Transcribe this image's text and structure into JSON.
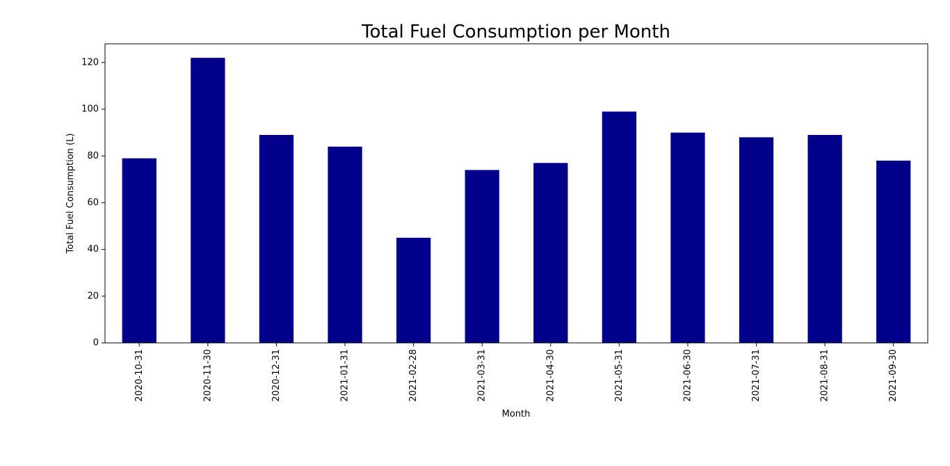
{
  "chart_data": {
    "type": "bar",
    "title": "Total Fuel Consumption per Month",
    "xlabel": "Month",
    "ylabel": "Total Fuel Consumption (L)",
    "categories": [
      "2020-10-31",
      "2020-11-30",
      "2020-12-31",
      "2021-01-31",
      "2021-02-28",
      "2021-03-31",
      "2021-04-30",
      "2021-05-31",
      "2021-06-30",
      "2021-07-31",
      "2021-08-31",
      "2021-09-30"
    ],
    "values": [
      79,
      122,
      89,
      84,
      45,
      74,
      77,
      99,
      90,
      88,
      89,
      78
    ],
    "ylim": [
      0,
      128
    ],
    "yticks": [
      0,
      20,
      40,
      60,
      80,
      100,
      120
    ],
    "bar_color": "#00008b",
    "grid": false,
    "legend": "none"
  }
}
